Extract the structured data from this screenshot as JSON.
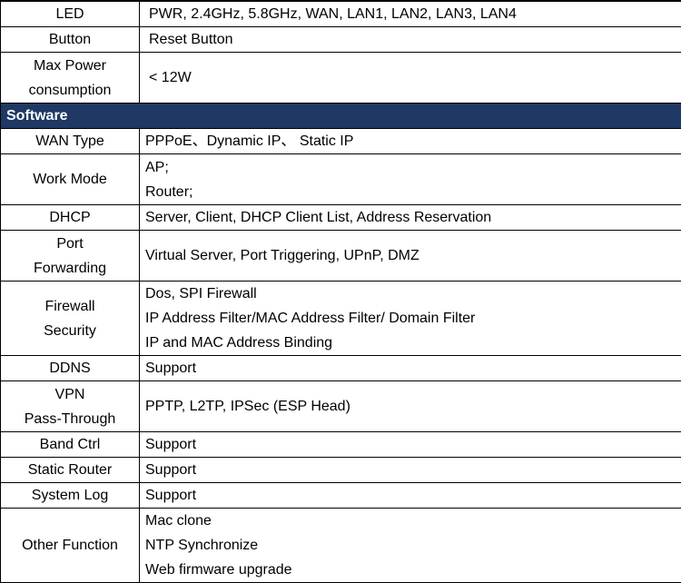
{
  "hardware_tail": [
    {
      "label": "LED",
      "value": "PWR, 2.4GHz, 5.8GHz, WAN, LAN1, LAN2, LAN3, LAN4"
    },
    {
      "label": "Button",
      "value": "Reset Button"
    },
    {
      "label_lines": [
        "Max Power",
        "consumption"
      ],
      "value": "< 12W"
    }
  ],
  "software": {
    "title": "Software",
    "rows": [
      {
        "label_lines": [
          "WAN Type"
        ],
        "value_lines": [
          "PPPoE、Dynamic IP、 Static IP"
        ]
      },
      {
        "label_lines": [
          "Work Mode"
        ],
        "value_lines": [
          "AP;",
          "Router;"
        ]
      },
      {
        "label_lines": [
          "DHCP"
        ],
        "value_lines": [
          "Server, Client, DHCP Client List, Address Reservation"
        ]
      },
      {
        "label_lines": [
          "Port",
          "Forwarding"
        ],
        "value_lines": [
          "Virtual Server, Port Triggering, UPnP, DMZ"
        ]
      },
      {
        "label_lines": [
          "Firewall",
          "Security"
        ],
        "value_lines": [
          "Dos, SPI Firewall",
          "IP Address Filter/MAC Address Filter/ Domain Filter",
          "IP and MAC Address Binding"
        ]
      },
      {
        "label_lines": [
          "DDNS"
        ],
        "value_lines": [
          "Support"
        ]
      },
      {
        "label_lines": [
          "VPN",
          "Pass-Through"
        ],
        "value_lines": [
          "PPTP, L2TP, IPSec (ESP Head)"
        ]
      },
      {
        "label_lines": [
          "Band Ctrl"
        ],
        "value_lines": [
          "Support"
        ]
      },
      {
        "label_lines": [
          "Static Router"
        ],
        "value_lines": [
          "Support"
        ]
      },
      {
        "label_lines": [
          "System Log"
        ],
        "value_lines": [
          "Support"
        ]
      },
      {
        "label_lines": [
          "Other Function"
        ],
        "value_lines": [
          "Mac clone",
          "NTP Synchronize",
          "Web firmware upgrade"
        ]
      }
    ]
  },
  "colors": {
    "section_header_bg": "#1f3864",
    "section_header_text": "#ffffff"
  }
}
